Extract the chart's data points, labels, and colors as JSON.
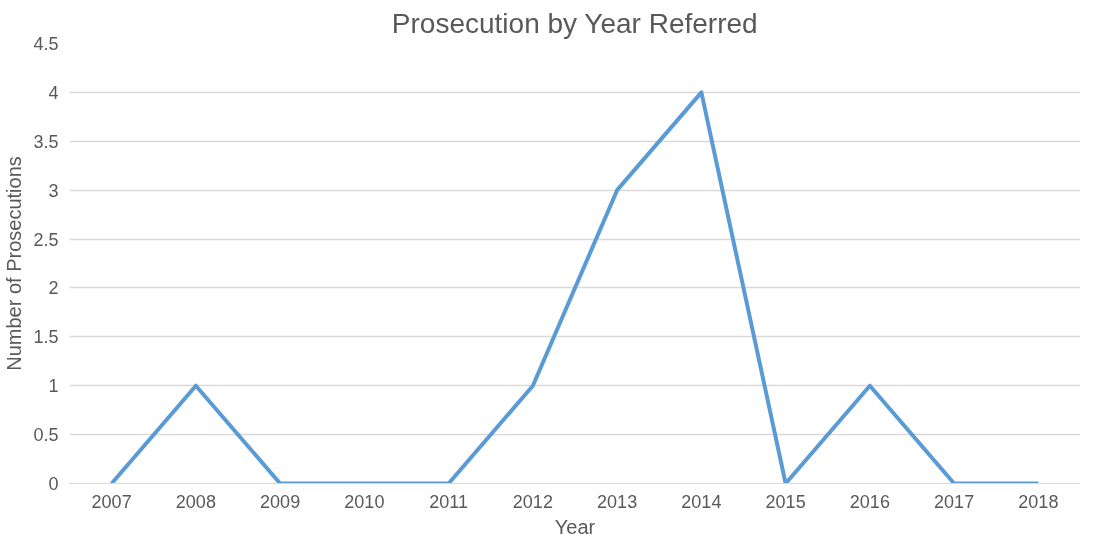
{
  "chart_data": {
    "type": "line",
    "title": "Prosecution by Year Referred",
    "xlabel": "Year",
    "ylabel": "Number of Prosecutions",
    "categories": [
      "2007",
      "2008",
      "2009",
      "2010",
      "2011",
      "2012",
      "2013",
      "2014",
      "2015",
      "2016",
      "2017",
      "2018"
    ],
    "series": [
      {
        "color": "#5b9bd5",
        "values": [
          0,
          1,
          0,
          0,
          0,
          1,
          3,
          4,
          0,
          1,
          0,
          0
        ]
      }
    ],
    "ylim": [
      0,
      4.5
    ],
    "yticks": [
      0,
      0.5,
      1,
      1.5,
      2,
      2.5,
      3,
      3.5,
      4,
      4.5
    ],
    "grid": "y",
    "marker": "none",
    "line_style": "solid"
  }
}
